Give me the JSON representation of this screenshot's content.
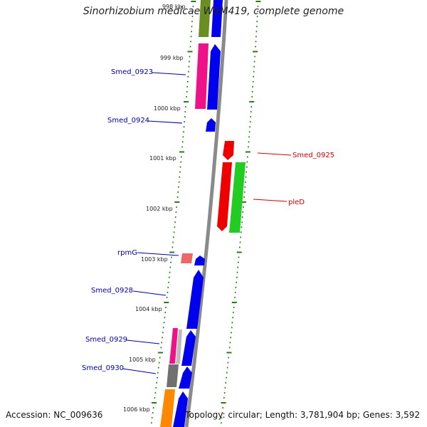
{
  "title": "Sinorhizobium medicae WSM419, complete genome",
  "accession": "Accession: NC_009636",
  "summary": "Topology: circular; Length: 3,781,904 bp; Genes: 3,592",
  "kbp_labels": [
    "998 kbp",
    "999 kbp",
    "1000 kbp",
    "1001 kbp",
    "1002 kbp",
    "1003 kbp",
    "1004 kbp",
    "1005 kbp",
    "1006 kbp"
  ],
  "gene_labels": {
    "smed_0923": "Smed_0923",
    "smed_0924": "Smed_0924",
    "smed_0925": "Smed_0925",
    "pled": "pleD",
    "rpmg": "rpmG",
    "smed_0928": "Smed_0928",
    "smed_0929": "Smed_0929",
    "smed_0930": "Smed_0930"
  },
  "colors": {
    "forward_label": "#0000aa",
    "reverse_label": "#cc0000",
    "backbone": "#8a8a8a",
    "ticks": "#2a7a1a",
    "cds_blue": "#0000ee",
    "magenta": "#ee1188",
    "red": "#ee0000",
    "green": "#22cc22",
    "olive": "#6b8e23",
    "orange": "#ff8800",
    "gray": "#707070",
    "salmon": "#ee6666"
  }
}
